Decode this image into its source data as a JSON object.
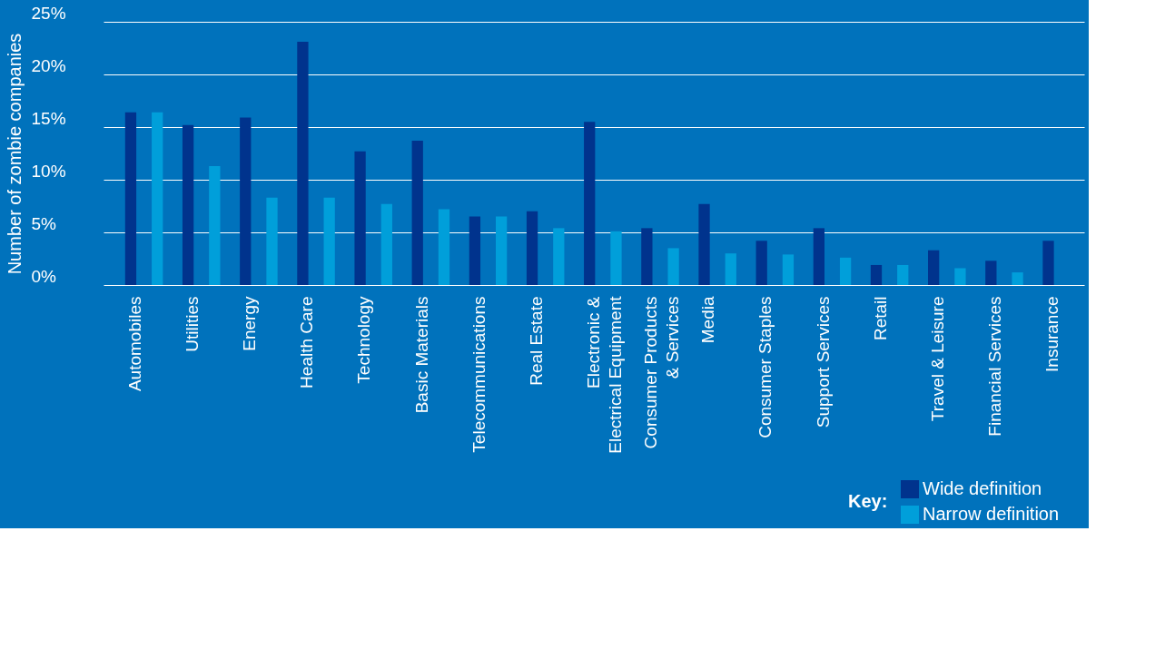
{
  "chart_data": {
    "type": "bar",
    "ylabel": "Number of zombie companies",
    "legend_title": "Key:",
    "categories": [
      "Automobiles",
      "Utilities",
      "Energy",
      "Health Care",
      "Technology",
      "Basic Materials",
      "Telecommunications",
      "Real Estate",
      "Electronic &\nElectrical Equipment",
      "Consumer Products\n& Services",
      "Media",
      "Consumer Staples",
      "Support Services",
      "Retail",
      "Travel & Leisure",
      "Financial Services",
      "Insurance"
    ],
    "series": [
      {
        "name": "Wide definition",
        "color": "#00338d",
        "values": [
          16.4,
          15.2,
          15.9,
          23.1,
          12.7,
          13.7,
          6.5,
          7.0,
          15.5,
          5.4,
          7.7,
          4.2,
          5.4,
          1.9,
          3.3,
          2.3,
          4.2
        ]
      },
      {
        "name": "Narrow definition",
        "color": "#009fda",
        "values": [
          16.4,
          11.3,
          8.3,
          8.3,
          7.7,
          7.2,
          6.5,
          5.4,
          5.1,
          3.5,
          3.0,
          2.9,
          2.6,
          1.9,
          1.6,
          1.2,
          null
        ]
      }
    ],
    "ylim": [
      0,
      25
    ],
    "yticks": [
      {
        "value": 0,
        "label": "0%"
      },
      {
        "value": 5,
        "label": "5%"
      },
      {
        "value": 10,
        "label": "10%"
      },
      {
        "value": 15,
        "label": "15%"
      },
      {
        "value": 20,
        "label": "20%"
      },
      {
        "value": 25,
        "label": "25%"
      }
    ],
    "grid": "y",
    "legend": "bottom right"
  }
}
